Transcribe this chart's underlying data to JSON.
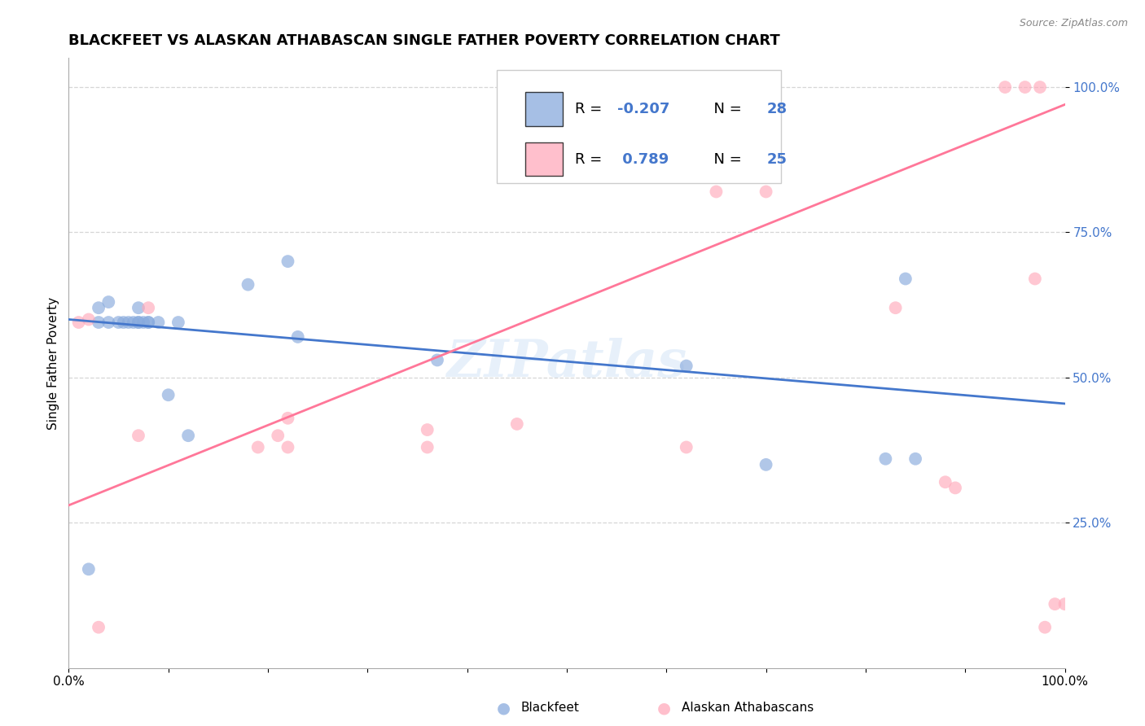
{
  "title": "BLACKFEET VS ALASKAN ATHABASCAN SINGLE FATHER POVERTY CORRELATION CHART",
  "source": "Source: ZipAtlas.com",
  "ylabel": "Single Father Poverty",
  "watermark": "ZIPatlas",
  "blue_R": -0.207,
  "blue_N": 28,
  "pink_R": 0.789,
  "pink_N": 25,
  "blue_color": "#88AADD",
  "pink_color": "#FFAABB",
  "blue_line_color": "#4477CC",
  "pink_line_color": "#FF7799",
  "blue_label": "Blackfeet",
  "pink_label": "Alaskan Athabascans",
  "blue_points_x": [
    0.02,
    0.03,
    0.03,
    0.04,
    0.04,
    0.05,
    0.055,
    0.06,
    0.065,
    0.07,
    0.07,
    0.07,
    0.075,
    0.08,
    0.08,
    0.09,
    0.1,
    0.11,
    0.12,
    0.18,
    0.22,
    0.23,
    0.37,
    0.62,
    0.7,
    0.82,
    0.84,
    0.85
  ],
  "blue_points_y": [
    0.17,
    0.595,
    0.62,
    0.595,
    0.63,
    0.595,
    0.595,
    0.595,
    0.595,
    0.62,
    0.595,
    0.595,
    0.595,
    0.595,
    0.595,
    0.595,
    0.47,
    0.595,
    0.4,
    0.66,
    0.7,
    0.57,
    0.53,
    0.52,
    0.35,
    0.36,
    0.67,
    0.36
  ],
  "blue_sizes": [
    120,
    80,
    80,
    80,
    80,
    80,
    80,
    80,
    80,
    80,
    80,
    80,
    80,
    80,
    80,
    80,
    80,
    80,
    80,
    80,
    80,
    80,
    80,
    80,
    80,
    80,
    80,
    80
  ],
  "pink_points_x": [
    0.01,
    0.02,
    0.03,
    0.07,
    0.08,
    0.19,
    0.21,
    0.22,
    0.22,
    0.36,
    0.36,
    0.45,
    0.62,
    0.65,
    0.7,
    0.83,
    0.88,
    0.89,
    0.94,
    0.96,
    0.97,
    0.975,
    0.98,
    0.99,
    1.0
  ],
  "pink_points_y": [
    0.595,
    0.6,
    0.07,
    0.4,
    0.62,
    0.38,
    0.4,
    0.38,
    0.43,
    0.38,
    0.41,
    0.42,
    0.38,
    0.82,
    0.82,
    0.62,
    0.32,
    0.31,
    1.0,
    1.0,
    0.67,
    1.0,
    0.07,
    0.11,
    0.11
  ],
  "pink_sizes": [
    80,
    80,
    80,
    80,
    80,
    80,
    80,
    80,
    80,
    80,
    80,
    80,
    80,
    80,
    80,
    80,
    80,
    80,
    80,
    80,
    80,
    80,
    80,
    80,
    80
  ],
  "blue_line_x": [
    0.0,
    1.0
  ],
  "blue_line_y_start": 0.6,
  "blue_line_y_end": 0.455,
  "pink_line_x": [
    0.0,
    1.0
  ],
  "pink_line_y_start": 0.28,
  "pink_line_y_end": 0.97,
  "xlim": [
    0.0,
    1.0
  ],
  "ylim": [
    0.0,
    1.05
  ],
  "ytick_positions": [
    0.25,
    0.5,
    0.75,
    1.0
  ],
  "ytick_labels": [
    "25.0%",
    "50.0%",
    "75.0%",
    "100.0%"
  ],
  "xtick_positions": [
    0.0,
    1.0
  ],
  "xtick_labels": [
    "0.0%",
    "100.0%"
  ],
  "background_color": "#FFFFFF",
  "grid_color": "#CCCCCC",
  "title_fontsize": 13,
  "axis_label_fontsize": 11,
  "tick_fontsize": 11,
  "legend_fontsize": 13
}
